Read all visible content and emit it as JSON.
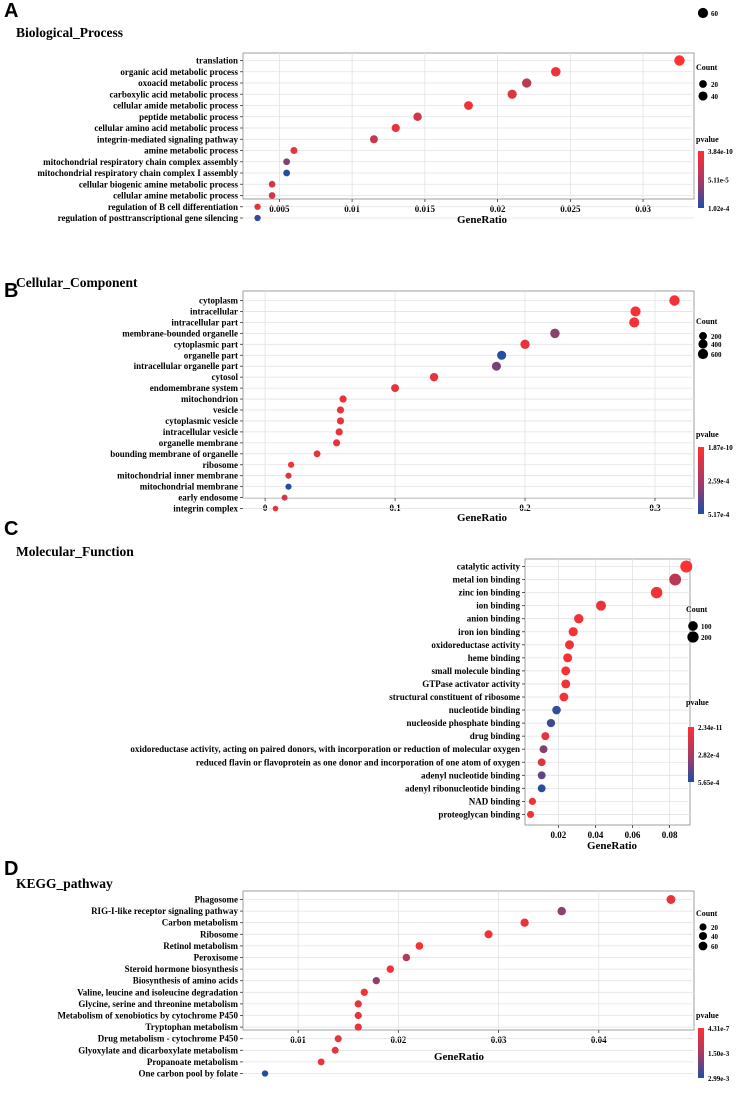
{
  "chart_data": [
    {
      "type": "scatter",
      "panel_label": "A",
      "title": "Biological_Process",
      "xlabel": "GeneRatio",
      "xlim": [
        0.0025,
        0.0335
      ],
      "xticks": [
        0.005,
        0.01,
        0.015,
        0.02,
        0.025,
        0.03
      ],
      "xtick_labels": [
        "0.005",
        "0.01",
        "0.015",
        "0.02",
        "0.025",
        "0.03"
      ],
      "grid": true,
      "color_scale": {
        "low": "#ff3030",
        "high": "#1c4fa8"
      },
      "points": [
        {
          "term": "translation",
          "x": 0.0325,
          "count": 65,
          "c": 0.0
        },
        {
          "term": "organic acid metabolic process",
          "x": 0.024,
          "count": 48,
          "c": 0.08
        },
        {
          "term": "oxoacid metabolic process",
          "x": 0.022,
          "count": 44,
          "c": 0.3
        },
        {
          "term": "carboxylic acid metabolic process",
          "x": 0.021,
          "count": 42,
          "c": 0.15
        },
        {
          "term": "cellular amide metabolic process",
          "x": 0.018,
          "count": 36,
          "c": 0.05
        },
        {
          "term": "peptide metabolic process",
          "x": 0.0145,
          "count": 29,
          "c": 0.2
        },
        {
          "term": "cellular amino acid metabolic process",
          "x": 0.013,
          "count": 26,
          "c": 0.1
        },
        {
          "term": "integrin-mediated signaling pathway",
          "x": 0.0115,
          "count": 23,
          "c": 0.25
        },
        {
          "term": "amine metabolic process",
          "x": 0.006,
          "count": 12,
          "c": 0.1
        },
        {
          "term": "mitochondrial respiratory chain complex assembly",
          "x": 0.0055,
          "count": 11,
          "c": 0.55
        },
        {
          "term": "mitochondrial respiratory chain complex I assembly",
          "x": 0.0055,
          "count": 11,
          "c": 0.95
        },
        {
          "term": "cellular biogenic amine metabolic process",
          "x": 0.0045,
          "count": 9,
          "c": 0.2
        },
        {
          "term": "cellular amine metabolic process",
          "x": 0.0045,
          "count": 9,
          "c": 0.2
        },
        {
          "term": "regulation of B cell differentiation",
          "x": 0.0035,
          "count": 7,
          "c": 0.1
        },
        {
          "term": "regulation of posttranscriptional gene silencing",
          "x": 0.0035,
          "count": 7,
          "c": 0.9
        }
      ],
      "size_legend": {
        "title": "Count",
        "values": [
          20,
          40,
          60
        ],
        "labels": [
          "20",
          "40",
          "60"
        ]
      },
      "color_legend": {
        "title": "pvalue",
        "labels": [
          "3.84e-10",
          "5.11e-5",
          "1.02e-4"
        ]
      }
    },
    {
      "type": "scatter",
      "panel_label": "B",
      "title": "Cellular_Component",
      "xlabel": "GeneRatio",
      "xlim": [
        -0.017,
        0.33
      ],
      "xticks": [
        0,
        0.1,
        0.2,
        0.3
      ],
      "xtick_labels": [
        "0",
        "0.1",
        "0.2",
        "0.3"
      ],
      "grid": true,
      "color_scale": {
        "low": "#ff3030",
        "high": "#1c4fa8"
      },
      "points": [
        {
          "term": "cytoplasm",
          "x": 0.315,
          "count": 650,
          "c": 0.05
        },
        {
          "term": "intracellular",
          "x": 0.285,
          "count": 600,
          "c": 0.05
        },
        {
          "term": "intracellular part",
          "x": 0.284,
          "count": 590,
          "c": 0.05
        },
        {
          "term": "membrane-bounded organelle",
          "x": 0.223,
          "count": 460,
          "c": 0.5
        },
        {
          "term": "cytoplasmic part",
          "x": 0.2,
          "count": 420,
          "c": 0.1
        },
        {
          "term": "organelle part",
          "x": 0.182,
          "count": 380,
          "c": 0.95
        },
        {
          "term": "intracellular organelle part",
          "x": 0.178,
          "count": 370,
          "c": 0.6
        },
        {
          "term": "cytosol",
          "x": 0.13,
          "count": 270,
          "c": 0.1
        },
        {
          "term": "endomembrane system",
          "x": 0.1,
          "count": 210,
          "c": 0.1
        },
        {
          "term": "mitochondrion",
          "x": 0.06,
          "count": 125,
          "c": 0.1
        },
        {
          "term": "vesicle",
          "x": 0.058,
          "count": 120,
          "c": 0.1
        },
        {
          "term": "cytoplasmic vesicle",
          "x": 0.058,
          "count": 120,
          "c": 0.1
        },
        {
          "term": "intracellular vesicle",
          "x": 0.057,
          "count": 118,
          "c": 0.1
        },
        {
          "term": "organelle membrane",
          "x": 0.055,
          "count": 115,
          "c": 0.1
        },
        {
          "term": "bounding membrane of organelle",
          "x": 0.04,
          "count": 84,
          "c": 0.1
        },
        {
          "term": "ribosome",
          "x": 0.02,
          "count": 42,
          "c": 0.05
        },
        {
          "term": "mitochondrial inner membrane",
          "x": 0.018,
          "count": 38,
          "c": 0.15
        },
        {
          "term": "mitochondrial membrane",
          "x": 0.018,
          "count": 38,
          "c": 0.95
        },
        {
          "term": "early endosome",
          "x": 0.015,
          "count": 30,
          "c": 0.2
        },
        {
          "term": "integrin complex",
          "x": 0.008,
          "count": 16,
          "c": 0.1
        }
      ],
      "size_legend": {
        "title": "Count",
        "values": [
          200,
          400,
          600
        ],
        "labels": [
          "200",
          "400",
          "600"
        ]
      },
      "color_legend": {
        "title": "pvalue",
        "labels": [
          "1.87e-10",
          "2.59e-4",
          "5.17e-4"
        ]
      }
    },
    {
      "type": "scatter",
      "panel_label": "C",
      "title": "Molecular_Function",
      "xlabel": "GeneRatio",
      "xlim": [
        0.002,
        0.091
      ],
      "xticks": [
        0.02,
        0.04,
        0.06,
        0.08
      ],
      "xtick_labels": [
        "0.02",
        "0.04",
        "0.06",
        "0.08"
      ],
      "grid": true,
      "color_scale": {
        "low": "#ff3030",
        "high": "#1c4fa8"
      },
      "points": [
        {
          "term": "catalytic activity",
          "x": 0.089,
          "count": 250,
          "c": 0.0
        },
        {
          "term": "metal ion binding",
          "x": 0.083,
          "count": 240,
          "c": 0.3
        },
        {
          "term": "zinc ion binding",
          "x": 0.073,
          "count": 210,
          "c": 0.05
        },
        {
          "term": "ion binding",
          "x": 0.043,
          "count": 120,
          "c": 0.1
        },
        {
          "term": "anion binding",
          "x": 0.031,
          "count": 88,
          "c": 0.05
        },
        {
          "term": "iron ion binding",
          "x": 0.028,
          "count": 80,
          "c": 0.05
        },
        {
          "term": "oxidoreductase activity",
          "x": 0.026,
          "count": 73,
          "c": 0.05
        },
        {
          "term": "heme binding",
          "x": 0.025,
          "count": 70,
          "c": 0.05
        },
        {
          "term": "small molecule binding",
          "x": 0.024,
          "count": 68,
          "c": 0.05
        },
        {
          "term": "GTPase activator activity",
          "x": 0.024,
          "count": 67,
          "c": 0.05
        },
        {
          "term": "structural constituent of ribosome",
          "x": 0.023,
          "count": 64,
          "c": 0.05
        },
        {
          "term": "nucleotide binding",
          "x": 0.019,
          "count": 54,
          "c": 0.9
        },
        {
          "term": "nucleoside phosphate binding",
          "x": 0.016,
          "count": 45,
          "c": 0.85
        },
        {
          "term": "drug binding",
          "x": 0.013,
          "count": 37,
          "c": 0.1
        },
        {
          "term": "oxidoreductase activity, acting on paired donors, with incorporation or reduction of molecular oxygen",
          "x": 0.012,
          "count": 34,
          "c": 0.55
        },
        {
          "term": "reduced flavin or flavoprotein as one donor and incorporation of one atom of oxygen",
          "x": 0.011,
          "count": 31,
          "c": 0.15
        },
        {
          "term": "adenyl nucleotide binding",
          "x": 0.011,
          "count": 31,
          "c": 0.7
        },
        {
          "term": "adenyl ribonucleotide binding",
          "x": 0.011,
          "count": 31,
          "c": 0.95
        },
        {
          "term": "NAD binding",
          "x": 0.006,
          "count": 17,
          "c": 0.05
        },
        {
          "term": "proteoglycan binding",
          "x": 0.005,
          "count": 14,
          "c": 0.05
        }
      ],
      "size_legend": {
        "title": "Count",
        "values": [
          100,
          200
        ],
        "labels": [
          "100",
          "200"
        ]
      },
      "color_legend": {
        "title": "pvalue",
        "labels": [
          "2.34e-11",
          "2.82e-4",
          "5.65e-4"
        ]
      }
    },
    {
      "type": "scatter",
      "panel_label": "D",
      "title": "KEGG_pathway",
      "xlabel": "GeneRatio",
      "xlim": [
        0.0045,
        0.0495
      ],
      "xticks": [
        0.01,
        0.02,
        0.03,
        0.04
      ],
      "xtick_labels": [
        "0.01",
        "0.02",
        "0.03",
        "0.04"
      ],
      "grid": true,
      "color_scale": {
        "low": "#ff3030",
        "high": "#1c4fa8"
      },
      "points": [
        {
          "term": "Phagosome",
          "x": 0.0472,
          "count": 65,
          "c": 0.1
        },
        {
          "term": "RIG-I-like receptor signaling pathway",
          "x": 0.0363,
          "count": 50,
          "c": 0.5
        },
        {
          "term": "Carbon metabolism",
          "x": 0.0326,
          "count": 45,
          "c": 0.08
        },
        {
          "term": "Ribosome",
          "x": 0.029,
          "count": 40,
          "c": 0.05
        },
        {
          "term": "Retinol metabolism",
          "x": 0.0221,
          "count": 30,
          "c": 0.05
        },
        {
          "term": "Peroxisome",
          "x": 0.0208,
          "count": 28,
          "c": 0.35
        },
        {
          "term": "Steroid hormone biosynthesis",
          "x": 0.0192,
          "count": 26,
          "c": 0.05
        },
        {
          "term": "Biosynthesis of amino acids",
          "x": 0.0178,
          "count": 24,
          "c": 0.5
        },
        {
          "term": "Valine, leucine and isoleucine degradation",
          "x": 0.0166,
          "count": 23,
          "c": 0.05
        },
        {
          "term": "Glycine, serine and threonine metabolism",
          "x": 0.016,
          "count": 22,
          "c": 0.1
        },
        {
          "term": "Metabolism of xenobiotics by cytochrome P450",
          "x": 0.016,
          "count": 22,
          "c": 0.1
        },
        {
          "term": "Tryptophan metabolism",
          "x": 0.016,
          "count": 22,
          "c": 0.1
        },
        {
          "term": "Drug metabolism - cytochrome P450",
          "x": 0.014,
          "count": 19,
          "c": 0.1
        },
        {
          "term": "Glyoxylate and dicarboxylate metabolism",
          "x": 0.0137,
          "count": 18,
          "c": 0.1
        },
        {
          "term": "Propanoate metabolism",
          "x": 0.0123,
          "count": 16,
          "c": 0.1
        },
        {
          "term": "One carbon pool by folate",
          "x": 0.0067,
          "count": 9,
          "c": 0.95
        }
      ],
      "size_legend": {
        "title": "Count",
        "values": [
          20,
          40,
          60
        ],
        "labels": [
          "20",
          "40",
          "60"
        ]
      },
      "color_legend": {
        "title": "pvalue",
        "labels": [
          "4.31e-7",
          "1.50e-3",
          "2.99e-3"
        ]
      }
    }
  ]
}
